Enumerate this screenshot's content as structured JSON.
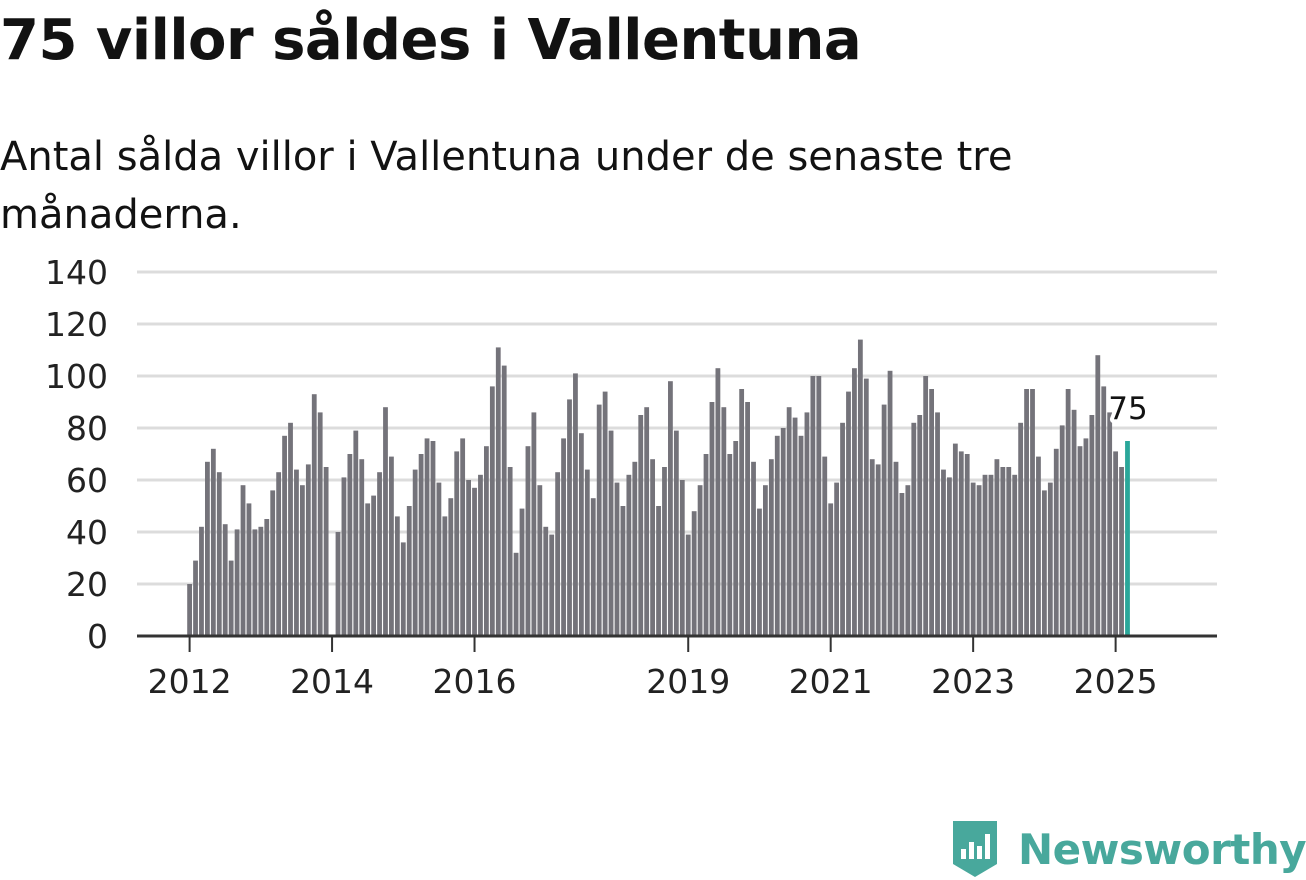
{
  "title": "75 villor såldes i Vallentuna",
  "subtitle": "Antal sålda villor i Vallentuna under de senaste tre månaderna.",
  "brand": {
    "name": "Newsworthy",
    "color": "#48a89c",
    "icon": "newsworthy-logo-icon"
  },
  "colors": {
    "bar": "#74737a",
    "highlight": "#2aa79a",
    "grid": "#dcdcdc",
    "axis": "#333333"
  },
  "chart_data": {
    "type": "bar",
    "title": "",
    "xlabel": "",
    "ylabel": "",
    "ylim": [
      0,
      140
    ],
    "y_ticks": [
      "0",
      "20",
      "40",
      "60",
      "80",
      "100",
      "120",
      "140"
    ],
    "y_tick_values": [
      0,
      20,
      40,
      60,
      80,
      100,
      120,
      140
    ],
    "x_ticks": [
      "2012",
      "2014",
      "2016",
      "2019",
      "2021",
      "2023",
      "2025"
    ],
    "x_tick_months": [
      0,
      24,
      48,
      84,
      108,
      132,
      156
    ],
    "grid": true,
    "start": "2012-01",
    "values": [
      20,
      29,
      42,
      67,
      72,
      63,
      43,
      29,
      41,
      58,
      51,
      41,
      42,
      45,
      56,
      63,
      77,
      82,
      64,
      58,
      66,
      93,
      86,
      65,
      null,
      40,
      61,
      70,
      79,
      68,
      51,
      54,
      63,
      88,
      69,
      46,
      36,
      50,
      64,
      70,
      76,
      75,
      59,
      46,
      53,
      71,
      76,
      60,
      57,
      62,
      73,
      96,
      111,
      104,
      65,
      32,
      49,
      73,
      86,
      58,
      42,
      39,
      63,
      76,
      91,
      101,
      78,
      64,
      53,
      89,
      94,
      79,
      59,
      50,
      62,
      67,
      85,
      88,
      68,
      50,
      65,
      98,
      79,
      60,
      39,
      48,
      58,
      70,
      90,
      103,
      88,
      70,
      75,
      95,
      90,
      67,
      49,
      58,
      68,
      77,
      80,
      88,
      84,
      77,
      86,
      100,
      100,
      69,
      51,
      59,
      82,
      94,
      103,
      114,
      99,
      68,
      66,
      89,
      102,
      67,
      55,
      58,
      82,
      85,
      100,
      95,
      86,
      64,
      61,
      74,
      71,
      70,
      59,
      58,
      62,
      62,
      68,
      65,
      65,
      62,
      82,
      95,
      95,
      69,
      56,
      59,
      72,
      81,
      95,
      87,
      73,
      76,
      85,
      108,
      96,
      86,
      71,
      65,
      75
    ],
    "highlight_index": 158,
    "annotation": "75"
  }
}
